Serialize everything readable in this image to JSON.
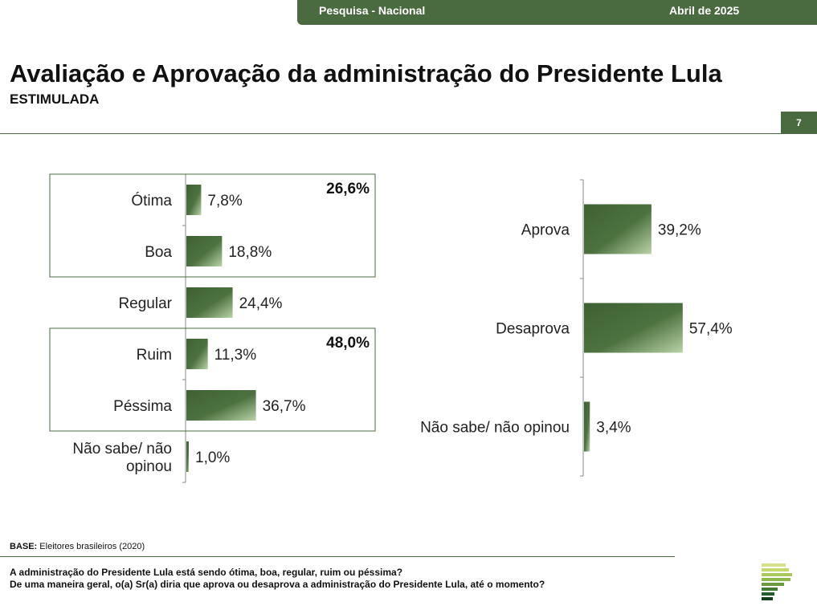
{
  "header": {
    "survey": "Pesquisa - Nacional",
    "date": "Abril de 2025"
  },
  "title": "Avaliação e Aprovação da administração do Presidente Lula",
  "subtitle": "ESTIMULADA",
  "page_number": "7",
  "footer": {
    "base_label": "BASE:",
    "base_text": "Eleitores brasileiros (2020)",
    "question_1": "A administração do Presidente Lula está sendo ótima, boa, regular, ruim ou péssima?",
    "question_2": "De uma maneira geral, o(a) Sr(a) diria que aprova ou desaprova a administração do Presidente Lula, até o momento?"
  },
  "colors": {
    "bar_dark": "#3e6133",
    "bar_light": "#b9d3a8",
    "accent": "#4a6a3f"
  },
  "chart_data": [
    {
      "type": "bar",
      "orientation": "horizontal",
      "categories": [
        "Ótima",
        "Boa",
        "Regular",
        "Ruim",
        "Péssima",
        "Não sabe/ não opinou"
      ],
      "category_lines": [
        [
          "Ótima"
        ],
        [
          "Boa"
        ],
        [
          "Regular"
        ],
        [
          "Ruim"
        ],
        [
          "Péssima"
        ],
        [
          "Não sabe/ não",
          "opinou"
        ]
      ],
      "values": [
        7.8,
        18.8,
        24.4,
        11.3,
        36.7,
        1.0
      ],
      "value_labels": [
        "7,8%",
        "18,8%",
        "24,4%",
        "11,3%",
        "36,7%",
        "1,0%"
      ],
      "groups": [
        {
          "members": [
            "Ótima",
            "Boa"
          ],
          "total_label": "26,6%"
        },
        {
          "members": [
            "Ruim",
            "Péssima"
          ],
          "total_label": "48,0%"
        }
      ],
      "xlim": [
        0,
        100
      ]
    },
    {
      "type": "bar",
      "orientation": "horizontal",
      "categories": [
        "Aprova",
        "Desaprova",
        "Não sabe/ não opinou"
      ],
      "category_lines": [
        [
          "Aprova"
        ],
        [
          "Desaprova"
        ],
        [
          "Não sabe/ não opinou"
        ]
      ],
      "values": [
        39.2,
        57.4,
        3.4
      ],
      "value_labels": [
        "39,2%",
        "57,4%",
        "3,4%"
      ],
      "xlim": [
        0,
        100
      ]
    }
  ]
}
